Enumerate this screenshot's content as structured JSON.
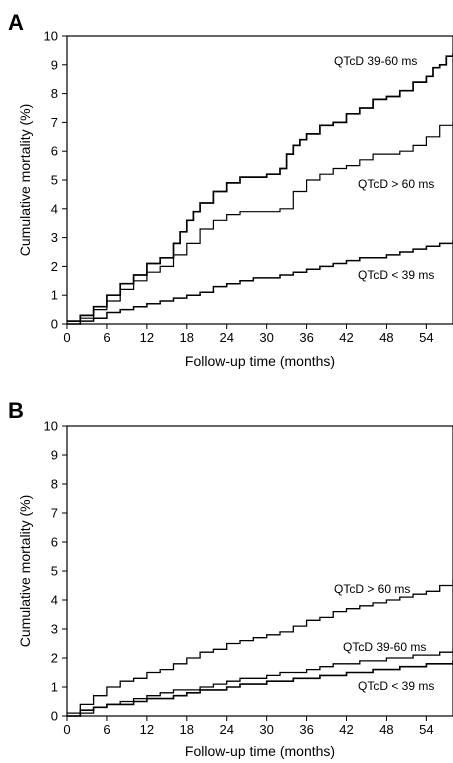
{
  "chart_data": [
    {
      "type": "line",
      "panel": "A",
      "xlabel": "Follow-up time (months)",
      "ylabel": "Cumulative mortality (%)",
      "xlim": [
        0,
        58
      ],
      "ylim": [
        0,
        10
      ],
      "xticks": [
        0,
        6,
        12,
        18,
        24,
        30,
        36,
        42,
        48,
        54
      ],
      "yticks": [
        0,
        1,
        2,
        3,
        4,
        5,
        6,
        7,
        8,
        9,
        10
      ],
      "grid": false,
      "series": [
        {
          "name": "QTcD 39-60 ms",
          "x": [
            0,
            2,
            4,
            6,
            8,
            10,
            12,
            14,
            16,
            17,
            18,
            19,
            20,
            22,
            24,
            26,
            28,
            30,
            32,
            33,
            34,
            35,
            36,
            38,
            40,
            42,
            44,
            46,
            48,
            50,
            52,
            54,
            55,
            56,
            57,
            58
          ],
          "y": [
            0.1,
            0.3,
            0.6,
            1.0,
            1.4,
            1.7,
            2.1,
            2.3,
            2.8,
            3.2,
            3.6,
            3.9,
            4.2,
            4.6,
            4.9,
            5.1,
            5.1,
            5.2,
            5.4,
            5.9,
            6.2,
            6.4,
            6.6,
            6.9,
            7.0,
            7.3,
            7.5,
            7.8,
            7.9,
            8.1,
            8.4,
            8.6,
            8.9,
            9.0,
            9.3,
            9.4
          ]
        },
        {
          "name": "QTcD > 60 ms",
          "x": [
            0,
            2,
            4,
            6,
            8,
            10,
            12,
            14,
            16,
            18,
            20,
            22,
            24,
            26,
            28,
            30,
            32,
            34,
            36,
            38,
            40,
            42,
            44,
            46,
            48,
            50,
            52,
            54,
            56,
            58
          ],
          "y": [
            0.1,
            0.2,
            0.5,
            0.8,
            1.2,
            1.5,
            1.8,
            2.0,
            2.4,
            2.8,
            3.3,
            3.6,
            3.8,
            3.9,
            3.9,
            3.9,
            4.0,
            4.6,
            5.0,
            5.2,
            5.4,
            5.5,
            5.7,
            5.9,
            5.9,
            6.0,
            6.2,
            6.5,
            6.9,
            7.0
          ]
        },
        {
          "name": "QTcD < 39 ms",
          "x": [
            0,
            2,
            4,
            6,
            8,
            10,
            12,
            14,
            16,
            18,
            20,
            22,
            24,
            26,
            28,
            30,
            32,
            34,
            36,
            38,
            40,
            42,
            44,
            46,
            48,
            50,
            52,
            54,
            56,
            58
          ],
          "y": [
            0.0,
            0.1,
            0.2,
            0.4,
            0.5,
            0.6,
            0.7,
            0.8,
            0.9,
            1.0,
            1.1,
            1.3,
            1.4,
            1.5,
            1.6,
            1.6,
            1.7,
            1.8,
            1.9,
            2.0,
            2.1,
            2.2,
            2.3,
            2.3,
            2.4,
            2.5,
            2.6,
            2.7,
            2.8,
            2.9
          ]
        }
      ]
    },
    {
      "type": "line",
      "panel": "B",
      "xlabel": "Follow-up time (months)",
      "ylabel": "Cumulative mortality (%)",
      "xlim": [
        0,
        58
      ],
      "ylim": [
        0,
        10
      ],
      "xticks": [
        0,
        6,
        12,
        18,
        24,
        30,
        36,
        42,
        48,
        54
      ],
      "yticks": [
        0,
        1,
        2,
        3,
        4,
        5,
        6,
        7,
        8,
        9,
        10
      ],
      "grid": false,
      "series": [
        {
          "name": "QTcD > 60 ms",
          "x": [
            0,
            2,
            4,
            6,
            8,
            10,
            12,
            14,
            16,
            18,
            20,
            22,
            24,
            26,
            28,
            30,
            32,
            34,
            36,
            38,
            40,
            42,
            44,
            46,
            48,
            50,
            52,
            54,
            56,
            58
          ],
          "y": [
            0.1,
            0.4,
            0.7,
            1.0,
            1.2,
            1.3,
            1.5,
            1.6,
            1.8,
            2.0,
            2.2,
            2.3,
            2.5,
            2.6,
            2.7,
            2.8,
            2.9,
            3.1,
            3.3,
            3.4,
            3.6,
            3.7,
            3.8,
            3.9,
            4.0,
            4.1,
            4.2,
            4.3,
            4.5,
            4.7
          ]
        },
        {
          "name": "QTcD 39-60 ms",
          "x": [
            0,
            2,
            4,
            6,
            8,
            10,
            12,
            14,
            16,
            18,
            20,
            22,
            24,
            26,
            28,
            30,
            32,
            34,
            36,
            38,
            40,
            42,
            44,
            46,
            48,
            50,
            52,
            54,
            56,
            58
          ],
          "y": [
            0.0,
            0.1,
            0.3,
            0.4,
            0.5,
            0.6,
            0.7,
            0.8,
            0.9,
            0.9,
            1.0,
            1.1,
            1.2,
            1.3,
            1.3,
            1.4,
            1.5,
            1.5,
            1.6,
            1.7,
            1.8,
            1.8,
            1.9,
            1.9,
            2.0,
            2.0,
            2.1,
            2.1,
            2.2,
            2.3
          ]
        },
        {
          "name": "QTcD < 39 ms",
          "x": [
            0,
            2,
            4,
            6,
            8,
            10,
            12,
            14,
            16,
            18,
            20,
            22,
            24,
            26,
            28,
            30,
            32,
            34,
            36,
            38,
            40,
            42,
            44,
            46,
            48,
            50,
            52,
            54,
            56,
            58
          ],
          "y": [
            0.0,
            0.2,
            0.3,
            0.4,
            0.4,
            0.5,
            0.6,
            0.6,
            0.7,
            0.8,
            0.9,
            0.9,
            1.0,
            1.1,
            1.1,
            1.2,
            1.2,
            1.3,
            1.3,
            1.4,
            1.4,
            1.5,
            1.5,
            1.6,
            1.6,
            1.7,
            1.7,
            1.8,
            1.8,
            1.9
          ]
        }
      ]
    }
  ]
}
